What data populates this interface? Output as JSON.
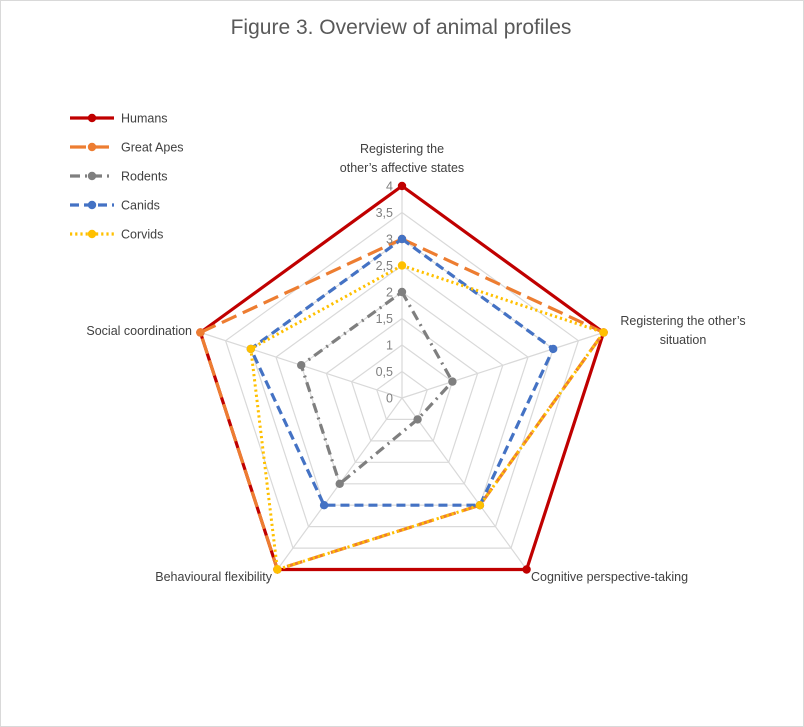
{
  "chart_data": {
    "type": "radar",
    "title": "Figure 3. Overview of animal profiles",
    "axes": [
      {
        "label_lines": [
          "Registering the",
          "other’s affective states"
        ]
      },
      {
        "label_lines": [
          "Registering the other’s",
          "situation"
        ]
      },
      {
        "label_lines": [
          "Cognitive perspective-taking"
        ]
      },
      {
        "label_lines": [
          "Behavioural flexibility"
        ]
      },
      {
        "label_lines": [
          "Social coordination"
        ]
      }
    ],
    "rlim": [
      0,
      4
    ],
    "ticks": [
      "0",
      "0,5",
      "1",
      "1,5",
      "2",
      "2,5",
      "3",
      "3,5",
      "4"
    ],
    "tick_values": [
      0,
      0.5,
      1,
      1.5,
      2,
      2.5,
      3,
      3.5,
      4
    ],
    "grid": true,
    "legend_position": "top-left",
    "series": [
      {
        "name": "Humans",
        "values": [
          4,
          4,
          4,
          4,
          4
        ],
        "color": "#C00000",
        "dash": "solid"
      },
      {
        "name": "Great Apes",
        "values": [
          3,
          4,
          2.5,
          4,
          4
        ],
        "color": "#ED7D31",
        "dash": "longdash"
      },
      {
        "name": "Rodents",
        "values": [
          2,
          1,
          0.5,
          2,
          2
        ],
        "color": "#7F7F7F",
        "dash": "dashdot"
      },
      {
        "name": "Canids",
        "values": [
          3,
          3,
          2.5,
          2.5,
          3
        ],
        "color": "#4472C4",
        "dash": "dash"
      },
      {
        "name": "Corvids",
        "values": [
          2.5,
          4,
          2.5,
          4,
          3
        ],
        "color": "#FFC000",
        "dash": "dot"
      }
    ]
  }
}
